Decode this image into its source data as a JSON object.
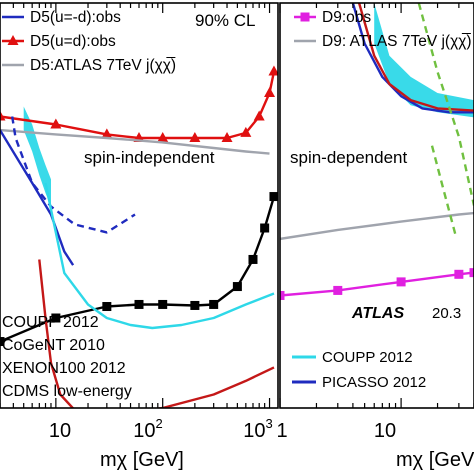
{
  "chart_data": [
    {
      "type": "line",
      "panel": "left",
      "title": "",
      "xlabel": "mχ [GeV]",
      "ylabel": "",
      "x_scale": "log",
      "xlim": [
        3,
        1200
      ],
      "y_scale": "log",
      "ylim": [
        1e-46,
        1e-37
      ],
      "x_ticks": [
        "10",
        "10²",
        "10³"
      ],
      "annotations": [
        "90% CL",
        "spin-independent"
      ],
      "legend_top": [
        {
          "name": "D5(u=-d):obs",
          "color": "#1f2bbf",
          "style": "solid",
          "marker": "none"
        },
        {
          "name": "D5(u=d):obs",
          "color": "#e01010",
          "style": "solid",
          "marker": "triangle"
        },
        {
          "name": "D5:ATLAS 7TeV j(χχ̅)",
          "color": "#a0a4ad",
          "style": "solid",
          "marker": "none"
        }
      ],
      "legend_bottom": [
        {
          "name": "COUPP 2012"
        },
        {
          "name": "CoGeNT 2010"
        },
        {
          "name": "XENON100 2012"
        },
        {
          "name": "CDMS low-energy"
        }
      ],
      "series": [
        {
          "name": "D5(u=d):obs",
          "color": "#e01010",
          "marker": "triangle",
          "style": "solid",
          "x": [
            3,
            10,
            30,
            60,
            100,
            200,
            400,
            600,
            800,
            1000,
            1100
          ],
          "y": [
            3e-40,
            2e-40,
            1.2e-40,
            1e-40,
            1e-40,
            1e-40,
            1e-40,
            1.3e-40,
            3e-40,
            1e-39,
            3e-39
          ]
        },
        {
          "name": "D5:ATLAS 7TeV j(χχ̅)",
          "color": "#a0a4ad",
          "marker": "none",
          "style": "solid",
          "x": [
            3,
            10,
            30,
            100,
            300,
            600,
            1000
          ],
          "y": [
            1.5e-40,
            1.2e-40,
            1e-40,
            8e-41,
            6e-41,
            5e-41,
            4.5e-41
          ]
        },
        {
          "name": "D5(u=-d):obs",
          "color": "#1f2bbf",
          "marker": "none",
          "style": "solid",
          "x": [
            3,
            6,
            9,
            12,
            14.5
          ],
          "y": [
            1.5e-40,
            1e-41,
            2e-42,
            3e-43,
            1.5e-43
          ]
        },
        {
          "name": "",
          "color": "#1f2bbf",
          "marker": "none",
          "style": "dashed",
          "x": [
            3.9,
            4.2,
            6,
            9,
            15,
            30,
            55
          ],
          "y": [
            3e-40,
            1e-40,
            1e-41,
            3e-42,
            1.2e-42,
            8e-43,
            2e-42
          ]
        },
        {
          "name": "",
          "color": "#000000",
          "marker": "square",
          "style": "solid",
          "x": [
            3,
            10,
            30,
            60,
            100,
            200,
            300,
            500,
            700,
            900,
            1100
          ],
          "y": [
            3e-45,
            1e-44,
            1.8e-44,
            2e-44,
            2e-44,
            1.9e-44,
            2e-44,
            5e-44,
            2e-43,
            1e-42,
            5e-42
          ]
        },
        {
          "name": "COUPP 2012",
          "color": "#2ed8e8",
          "marker": "none",
          "style": "solid",
          "x": [
            8,
            12,
            20,
            30,
            50,
            80,
            150,
            300,
            600,
            1100
          ],
          "y": [
            1e-41,
            1e-43,
            2e-44,
            1e-44,
            7e-45,
            6e-45,
            7e-45,
            1e-44,
            2e-44,
            3.5e-44
          ]
        },
        {
          "name": "XENON100 2012",
          "color": "#c41818",
          "marker": "none",
          "style": "solid",
          "x": [
            7,
            8,
            9,
            11,
            15,
            25,
            50,
            100,
            300,
            600,
            1100
          ],
          "y": [
            2e-43,
            1e-44,
            1e-45,
            2e-46,
            9e-47,
            9e-47,
            8e-47,
            1e-46,
            2e-46,
            4e-46,
            8e-46
          ]
        },
        {
          "name": "CoGeNT 2010",
          "color": "#2ed8e8",
          "marker": "none",
          "style": "band",
          "x": [
            5,
            6,
            7,
            8,
            9
          ],
          "y_low": [
            1.5e-40,
            5e-41,
            1.5e-41,
            6e-42,
            3e-42
          ],
          "y_high": [
            5e-40,
            2e-40,
            6e-41,
            2.5e-41,
            1.2e-41
          ]
        }
      ]
    },
    {
      "type": "line",
      "panel": "right",
      "title": "",
      "xlabel": "mχ [GeV]",
      "ylabel": "",
      "x_scale": "log",
      "xlim": [
        1,
        40
      ],
      "y_scale": "log",
      "ylim": [
        1e-46,
        1e-36
      ],
      "x_ticks": [
        "1",
        "10"
      ],
      "annotations": [
        "spin-dependent",
        "ATLAS",
        "20.3"
      ],
      "legend_top": [
        {
          "name": "D9:obs",
          "color": "#e020e0",
          "style": "solid",
          "marker": "square"
        },
        {
          "name": "D9: ATLAS 7TeV j(χχ̅)",
          "color": "#a0a4ad",
          "style": "solid",
          "marker": "none"
        }
      ],
      "legend_bottom": [
        {
          "name": "COUPP 2012",
          "color": "#2ed8e8"
        },
        {
          "name": "PICASSO 2012",
          "color": "#1f2bbf"
        }
      ],
      "series": [
        {
          "name": "D9:obs",
          "color": "#e020e0",
          "marker": "square",
          "style": "solid",
          "x": [
            1,
            3,
            10,
            30,
            40
          ],
          "y": [
            6e-44,
            8e-44,
            1.3e-43,
            2e-43,
            2.2e-43
          ]
        },
        {
          "name": "D9: ATLAS 7TeV j(χχ̅)",
          "color": "#a0a4ad",
          "marker": "none",
          "style": "solid",
          "x": [
            1,
            3,
            10,
            30,
            40
          ],
          "y": [
            1.5e-42,
            2.5e-42,
            4e-42,
            6e-42,
            6.5e-42
          ]
        },
        {
          "name": "PICASSO 2012",
          "color": "#1f2bbf",
          "marker": "none",
          "style": "solid",
          "x": [
            4,
            5,
            7,
            10,
            15,
            25,
            40
          ],
          "y": [
            1e-36,
            1e-37,
            1.5e-38,
            5e-39,
            2.5e-39,
            2e-39,
            2e-39
          ]
        },
        {
          "name": "",
          "color": "#c41818",
          "marker": "none",
          "style": "solid",
          "x": [
            4.5,
            6,
            8,
            12,
            20,
            40
          ],
          "y": [
            1e-36,
            5e-38,
            1e-38,
            4e-39,
            2.5e-39,
            2.2e-39
          ]
        },
        {
          "name": "",
          "color": "#70c040",
          "marker": "none",
          "style": "dashed",
          "x": [
            14,
            20,
            30,
            40
          ],
          "y": [
            1e-36,
            2e-38,
            5e-40,
            1e-41
          ]
        },
        {
          "name": "",
          "color": "#70c040",
          "marker": "none",
          "style": "dashed",
          "x": [
            18,
            22,
            28
          ],
          "y": [
            3e-40,
            3e-41,
            2e-42
          ]
        },
        {
          "name": "",
          "color": "#2ed8e8",
          "marker": "none",
          "style": "band",
          "x": [
            6,
            8,
            12,
            20,
            40
          ],
          "y_low": [
            1e-37,
            1e-38,
            3e-39,
            2e-39,
            1.5e-39
          ],
          "y_high": [
            1e-36,
            5e-38,
            1.5e-38,
            6e-39,
            4e-39
          ]
        }
      ]
    }
  ]
}
